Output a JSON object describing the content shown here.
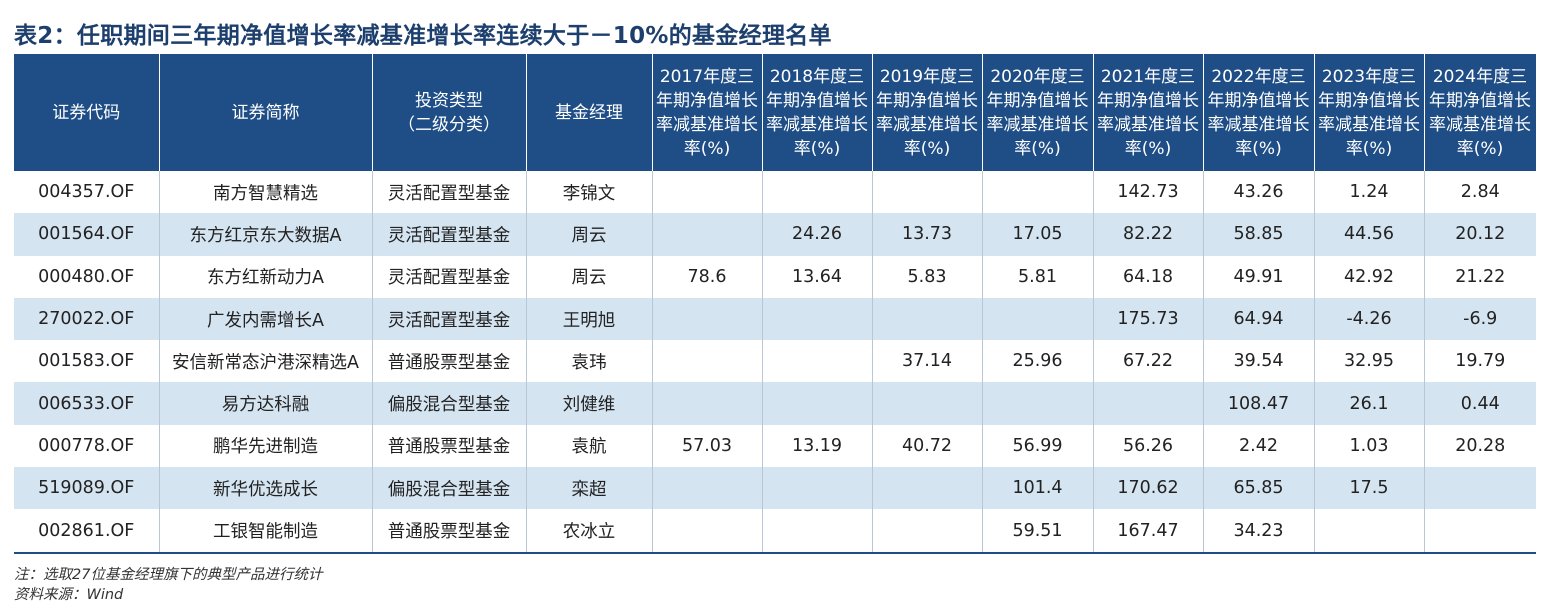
{
  "title": "表2：任职期间三年期净值增长率减基准增长率连续大于－10%的基金经理名单",
  "table": {
    "headers": [
      "证券代码",
      "证券简称",
      "投资类型\n（二级分类）",
      "基金经理",
      "2017年度三年期净值增长率减基准增长率(%)",
      "2018年度三年期净值增长率减基准增长率(%)",
      "2019年度三年期净值增长率减基准增长率(%)",
      "2020年度三年期净值增长率减基准增长率(%)",
      "2021年度三年期净值增长率减基准增长率(%)",
      "2022年度三年期净值增长率减基准增长率(%)",
      "2023年度三年期净值增长率减基准增长率(%)",
      "2024年度三年期净值增长率减基准增长率(%)"
    ],
    "rows": [
      [
        "004357.OF",
        "南方智慧精选",
        "灵活配置型基金",
        "李锦文",
        "",
        "",
        "",
        "",
        "142.73",
        "43.26",
        "1.24",
        "2.84"
      ],
      [
        "001564.OF",
        "东方红京东大数据A",
        "灵活配置型基金",
        "周云",
        "",
        "24.26",
        "13.73",
        "17.05",
        "82.22",
        "58.85",
        "44.56",
        "20.12"
      ],
      [
        "000480.OF",
        "东方红新动力A",
        "灵活配置型基金",
        "周云",
        "78.6",
        "13.64",
        "5.83",
        "5.81",
        "64.18",
        "49.91",
        "42.92",
        "21.22"
      ],
      [
        "270022.OF",
        "广发内需增长A",
        "灵活配置型基金",
        "王明旭",
        "",
        "",
        "",
        "",
        "175.73",
        "64.94",
        "-4.26",
        "-6.9"
      ],
      [
        "001583.OF",
        "安信新常态沪港深精选A",
        "普通股票型基金",
        "袁玮",
        "",
        "",
        "37.14",
        "25.96",
        "67.22",
        "39.54",
        "32.95",
        "19.79"
      ],
      [
        "006533.OF",
        "易方达科融",
        "偏股混合型基金",
        "刘健维",
        "",
        "",
        "",
        "",
        "",
        "108.47",
        "26.1",
        "0.44"
      ],
      [
        "000778.OF",
        "鹏华先进制造",
        "普通股票型基金",
        "袁航",
        "57.03",
        "13.19",
        "40.72",
        "56.99",
        "56.26",
        "2.42",
        "1.03",
        "20.28"
      ],
      [
        "519089.OF",
        "新华优选成长",
        "偏股混合型基金",
        "栾超",
        "",
        "",
        "",
        "101.4",
        "170.62",
        "65.85",
        "17.5",
        ""
      ],
      [
        "002861.OF",
        "工银智能制造",
        "普通股票型基金",
        "农冰立",
        "",
        "",
        "",
        "59.51",
        "167.47",
        "34.23",
        "",
        ""
      ]
    ]
  },
  "notes": {
    "note": "注：选取27位基金经理旗下的典型产品进行统计",
    "source": "资料来源：Wind"
  }
}
